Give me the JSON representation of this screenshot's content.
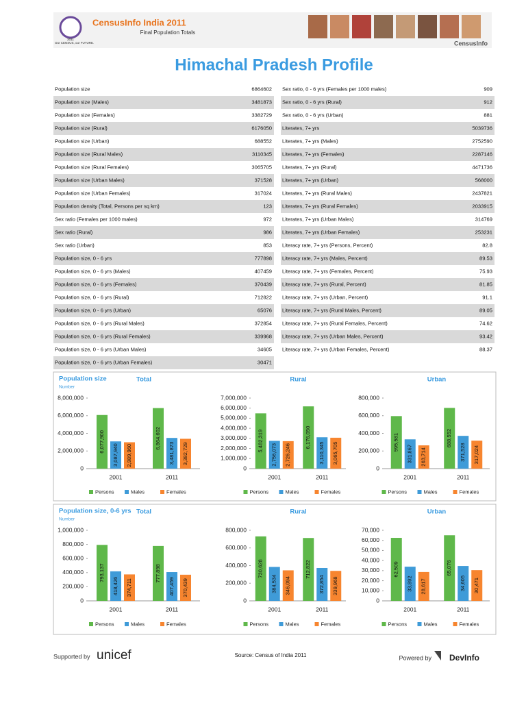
{
  "header": {
    "brand": "CensusInfo India 2011",
    "subtitle": "Final Population Totals",
    "logo_year": "2011",
    "motto": "Our CENSUS, our FUTURE.",
    "right_brand": "CensusInfo"
  },
  "title": "Himachal Pradesh Profile",
  "left_table": {
    "rows": [
      [
        "Population size",
        6864602
      ],
      [
        "Population size (Males)",
        3481873
      ],
      [
        "Population size (Females)",
        3382729
      ],
      [
        "Population size (Rural)",
        6176050
      ],
      [
        "Population size (Urban)",
        688552
      ],
      [
        "Population size (Rural Males)",
        3110345
      ],
      [
        "Population size (Rural Females)",
        3065705
      ],
      [
        "Population size (Urban Males)",
        371528
      ],
      [
        "Population size (Urban Females)",
        317024
      ],
      [
        "Population density (Total, Persons per sq km)",
        123
      ],
      [
        "Sex ratio (Females per 1000 males)",
        972
      ],
      [
        "Sex ratio (Rural)",
        986
      ],
      [
        "Sex ratio (Urban)",
        853
      ],
      [
        "Population size, 0 - 6 yrs",
        777898
      ],
      [
        "Population size, 0 - 6 yrs (Males)",
        407459
      ],
      [
        "Population size, 0 - 6 yrs (Females)",
        370439
      ],
      [
        "Population size, 0 - 6 yrs (Rural)",
        712822
      ],
      [
        "Population size, 0 - 6 yrs (Urban)",
        65076
      ],
      [
        "Population size, 0 - 6 yrs (Rural Males)",
        372854
      ],
      [
        "Population size, 0 - 6 yrs (Rural Females)",
        339968
      ],
      [
        "Population size, 0 - 6 yrs (Urban Males)",
        34605
      ],
      [
        "Population size, 0 - 6 yrs (Urban Females)",
        30471
      ]
    ]
  },
  "right_table": {
    "rows": [
      [
        "Sex ratio, 0 - 6 yrs (Females per 1000 males)",
        909
      ],
      [
        "Sex ratio, 0 - 6 yrs (Rural)",
        912
      ],
      [
        "Sex ratio, 0 - 6 yrs (Urban)",
        881
      ],
      [
        "Literates, 7+ yrs",
        5039736
      ],
      [
        "Literates, 7+ yrs (Males)",
        2752590
      ],
      [
        "Literates, 7+ yrs (Females)",
        2287146
      ],
      [
        "Literates, 7+ yrs (Rural)",
        4471736
      ],
      [
        "Literates, 7+ yrs (Urban)",
        568000
      ],
      [
        "Literates, 7+ yrs (Rural Males)",
        2437821
      ],
      [
        "Literates, 7+ yrs (Rural Females)",
        2033915
      ],
      [
        "Literates, 7+ yrs (Urban Males)",
        314769
      ],
      [
        "Literates, 7+ yrs (Urban Females)",
        253231
      ],
      [
        "Literacy rate, 7+ yrs (Persons, Percent)",
        82.8
      ],
      [
        "Literacy rate, 7+ yrs (Males, Percent)",
        89.53
      ],
      [
        "Literacy rate, 7+ yrs (Females, Percent)",
        75.93
      ],
      [
        "Literacy rate, 7+ yrs (Rural, Percent)",
        81.85
      ],
      [
        "Literacy rate, 7+ yrs (Urban, Percent)",
        91.1
      ],
      [
        "Literacy rate, 7+ yrs (Rural Males, Percent)",
        89.05
      ],
      [
        "Literacy rate, 7+ yrs (Rural Females, Percent)",
        74.62
      ],
      [
        "Literacy rate, 7+ yrs (Urban Males, Percent)",
        93.42
      ],
      [
        "Literacy rate, 7+ yrs (Urban Females, Percent)",
        88.37
      ]
    ]
  },
  "panels": [
    {
      "title": "Population size",
      "unit": "Number"
    },
    {
      "title": "Population size, 0-6 yrs",
      "unit": "Number"
    }
  ],
  "chart_data": [
    {
      "type": "bar",
      "title": "Total",
      "categories": [
        "2001",
        "2011"
      ],
      "ylim": [
        0,
        8000000
      ],
      "yticks": [
        0,
        {
          "value": 2000000,
          "label": "2,000,000"
        },
        {
          "value": 4000000,
          "label": "4,000,000"
        },
        {
          "value": 6000000,
          "label": "6,000,000"
        },
        {
          "value": 8000000,
          "label": "8,000,000"
        }
      ],
      "series": [
        {
          "name": "Persons",
          "color": "#5fb84a",
          "values": [
            6077900,
            6864602
          ],
          "value_labels": [
            "6,077,900",
            "6,864,602"
          ]
        },
        {
          "name": "Males",
          "color": "#3f9bd8",
          "values": [
            3087940,
            3481873
          ],
          "value_labels": [
            "3,087,940",
            "3,481,873"
          ]
        },
        {
          "name": "Females",
          "color": "#f7852f",
          "values": [
            2989960,
            3382729
          ],
          "value_labels": [
            "2,989,960",
            "3,382,729"
          ]
        }
      ]
    },
    {
      "type": "bar",
      "title": "Rural",
      "categories": [
        "2001",
        "2011"
      ],
      "ylim": [
        0,
        7000000
      ],
      "yticks": [
        0,
        {
          "value": 1000000,
          "label": "1,000,000"
        },
        {
          "value": 2000000,
          "label": "2,000,000"
        },
        {
          "value": 3000000,
          "label": "3,000,000"
        },
        {
          "value": 4000000,
          "label": "4,000,000"
        },
        {
          "value": 5000000,
          "label": "5,000,000"
        },
        {
          "value": 6000000,
          "label": "6,000,000"
        },
        {
          "value": 7000000,
          "label": "7,000,000"
        }
      ],
      "series": [
        {
          "name": "Persons",
          "color": "#5fb84a",
          "values": [
            5482319,
            6176050
          ],
          "value_labels": [
            "5,482,319",
            "6,176,050"
          ]
        },
        {
          "name": "Males",
          "color": "#3f9bd8",
          "values": [
            2756073,
            3110345
          ],
          "value_labels": [
            "2,756,073",
            "3,110,345"
          ]
        },
        {
          "name": "Females",
          "color": "#f7852f",
          "values": [
            2726246,
            3065705
          ],
          "value_labels": [
            "2,726,246",
            "3,065,705"
          ]
        }
      ]
    },
    {
      "type": "bar",
      "title": "Urban",
      "categories": [
        "2001",
        "2011"
      ],
      "ylim": [
        0,
        800000
      ],
      "yticks": [
        0,
        {
          "value": 200000,
          "label": "200,000"
        },
        {
          "value": 400000,
          "label": "400,000"
        },
        {
          "value": 600000,
          "label": "600,000"
        },
        {
          "value": 800000,
          "label": "800,000"
        }
      ],
      "series": [
        {
          "name": "Persons",
          "color": "#5fb84a",
          "values": [
            595581,
            688552
          ],
          "value_labels": [
            "595,581",
            "688,552"
          ]
        },
        {
          "name": "Males",
          "color": "#3f9bd8",
          "values": [
            331867,
            371528
          ],
          "value_labels": [
            "331,867",
            "371,528"
          ]
        },
        {
          "name": "Females",
          "color": "#f7852f",
          "values": [
            263714,
            317024
          ],
          "value_labels": [
            "263,714",
            "317,024"
          ]
        }
      ]
    },
    {
      "type": "bar",
      "title": "Total",
      "categories": [
        "2001",
        "2011"
      ],
      "ylim": [
        0,
        1000000
      ],
      "yticks": [
        0,
        {
          "value": 200000,
          "label": "200,000"
        },
        {
          "value": 400000,
          "label": "400,000"
        },
        {
          "value": 600000,
          "label": "600,000"
        },
        {
          "value": 800000,
          "label": "800,000"
        },
        {
          "value": 1000000,
          "label": "1,000,000"
        }
      ],
      "series": [
        {
          "name": "Persons",
          "color": "#5fb84a",
          "values": [
            793137,
            777898
          ],
          "value_labels": [
            "793,137",
            "777,898"
          ]
        },
        {
          "name": "Males",
          "color": "#3f9bd8",
          "values": [
            418426,
            407459
          ],
          "value_labels": [
            "418,426",
            "407,459"
          ]
        },
        {
          "name": "Females",
          "color": "#f7852f",
          "values": [
            374711,
            370439
          ],
          "value_labels": [
            "374,711",
            "370,439"
          ]
        }
      ]
    },
    {
      "type": "bar",
      "title": "Rural",
      "categories": [
        "2001",
        "2011"
      ],
      "ylim": [
        0,
        800000
      ],
      "yticks": [
        0,
        {
          "value": 200000,
          "label": "200,000"
        },
        {
          "value": 400000,
          "label": "400,000"
        },
        {
          "value": 600000,
          "label": "600,000"
        },
        {
          "value": 800000,
          "label": "800,000"
        }
      ],
      "series": [
        {
          "name": "Persons",
          "color": "#5fb84a",
          "values": [
            730628,
            712822
          ],
          "value_labels": [
            "730,628",
            "712,822"
          ]
        },
        {
          "name": "Males",
          "color": "#3f9bd8",
          "values": [
            384534,
            372854
          ],
          "value_labels": [
            "384,534",
            "372,854"
          ]
        },
        {
          "name": "Females",
          "color": "#f7852f",
          "values": [
            346094,
            339968
          ],
          "value_labels": [
            "346,094",
            "339,968"
          ]
        }
      ]
    },
    {
      "type": "bar",
      "title": "Urban",
      "categories": [
        "2001",
        "2011"
      ],
      "ylim": [
        0,
        70000
      ],
      "yticks": [
        0,
        {
          "value": 10000,
          "label": "10,000"
        },
        {
          "value": 20000,
          "label": "20,000"
        },
        {
          "value": 30000,
          "label": "30,000"
        },
        {
          "value": 40000,
          "label": "40,000"
        },
        {
          "value": 50000,
          "label": "50,000"
        },
        {
          "value": 60000,
          "label": "60,000"
        },
        {
          "value": 70000,
          "label": "70,000"
        }
      ],
      "series": [
        {
          "name": "Persons",
          "color": "#5fb84a",
          "values": [
            62509,
            65076
          ],
          "value_labels": [
            "62,509",
            "65,076"
          ]
        },
        {
          "name": "Males",
          "color": "#3f9bd8",
          "values": [
            33892,
            34605
          ],
          "value_labels": [
            "33,892",
            "34,605"
          ]
        },
        {
          "name": "Females",
          "color": "#f7852f",
          "values": [
            28617,
            30471
          ],
          "value_labels": [
            "28,617",
            "30,471"
          ]
        }
      ]
    }
  ],
  "footer": {
    "supported": "Supported by",
    "unicef": "unicef",
    "source": "Source: Census of India 2011",
    "powered": "Powered by",
    "devinfo": "DevInfo"
  }
}
